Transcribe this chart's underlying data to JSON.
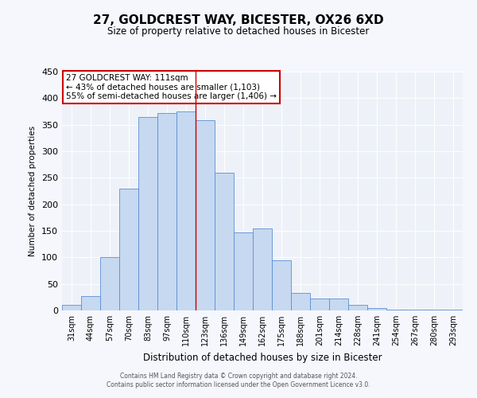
{
  "title": "27, GOLDCREST WAY, BICESTER, OX26 6XD",
  "subtitle": "Size of property relative to detached houses in Bicester",
  "xlabel": "Distribution of detached houses by size in Bicester",
  "ylabel": "Number of detached properties",
  "bar_labels": [
    "31sqm",
    "44sqm",
    "57sqm",
    "70sqm",
    "83sqm",
    "97sqm",
    "110sqm",
    "123sqm",
    "136sqm",
    "149sqm",
    "162sqm",
    "175sqm",
    "188sqm",
    "201sqm",
    "214sqm",
    "228sqm",
    "241sqm",
    "254sqm",
    "267sqm",
    "280sqm",
    "293sqm"
  ],
  "bar_values": [
    10,
    27,
    100,
    230,
    365,
    372,
    375,
    358,
    260,
    147,
    155,
    95,
    33,
    22,
    22,
    11,
    5,
    2,
    2,
    1,
    1
  ],
  "bar_color": "#c6d9f0",
  "bar_edge_color": "#5b8ed6",
  "background_color": "#eef2f8",
  "grid_color": "#ffffff",
  "vline_x": 6.5,
  "vline_color": "#cc0000",
  "annotation_title": "27 GOLDCREST WAY: 111sqm",
  "annotation_line1": "← 43% of detached houses are smaller (1,103)",
  "annotation_line2": "55% of semi-detached houses are larger (1,406) →",
  "annotation_box_color": "#cc0000",
  "ylim": [
    0,
    450
  ],
  "yticks": [
    0,
    50,
    100,
    150,
    200,
    250,
    300,
    350,
    400,
    450
  ],
  "footer_line1": "Contains HM Land Registry data © Crown copyright and database right 2024.",
  "footer_line2": "Contains public sector information licensed under the Open Government Licence v3.0."
}
